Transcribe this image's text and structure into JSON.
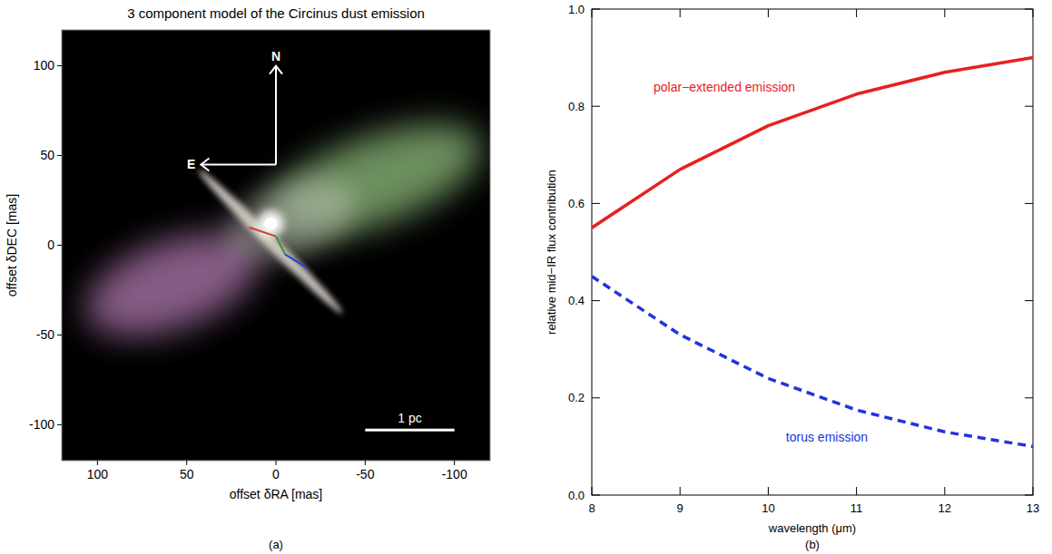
{
  "chart_data": [
    {
      "type": "image",
      "title": "3 component model of the Circinus dust emission",
      "x_label": "offset δRA [mas]",
      "y_label": "offset δDEC [mas]",
      "xlim": [
        120,
        -120
      ],
      "ylim": [
        -120,
        120
      ],
      "xticks": [
        100,
        50,
        0,
        -50,
        -100
      ],
      "yticks": [
        -100,
        -50,
        0,
        50,
        100
      ],
      "annotations": [
        "N",
        "E",
        "1 pc",
        "(a)"
      ]
    },
    {
      "type": "line",
      "x_label": "wavelength (μm)",
      "y_label": "relative mid−IR flux contribution",
      "x": [
        8,
        9,
        10,
        11,
        12,
        13
      ],
      "xlim": [
        8,
        13
      ],
      "ylim": [
        0,
        1
      ],
      "xticks": [
        8,
        9,
        10,
        11,
        12,
        13
      ],
      "yticks": [
        {
          "value": 0,
          "label": "0.0"
        },
        0.2,
        0.4,
        0.6,
        0.8,
        {
          "value": 1,
          "label": "1.0"
        }
      ],
      "series": [
        {
          "name": "polar−extended emission",
          "color": "#e8201e",
          "line_style": "solid",
          "values": [
            0.55,
            0.67,
            0.76,
            0.825,
            0.87,
            0.9
          ]
        },
        {
          "name": "torus emission",
          "color": "#2233dd",
          "line_style": "dashed",
          "values": [
            0.45,
            0.33,
            0.24,
            0.175,
            0.13,
            0.1
          ]
        }
      ],
      "annotations": [
        "(b)"
      ]
    }
  ]
}
